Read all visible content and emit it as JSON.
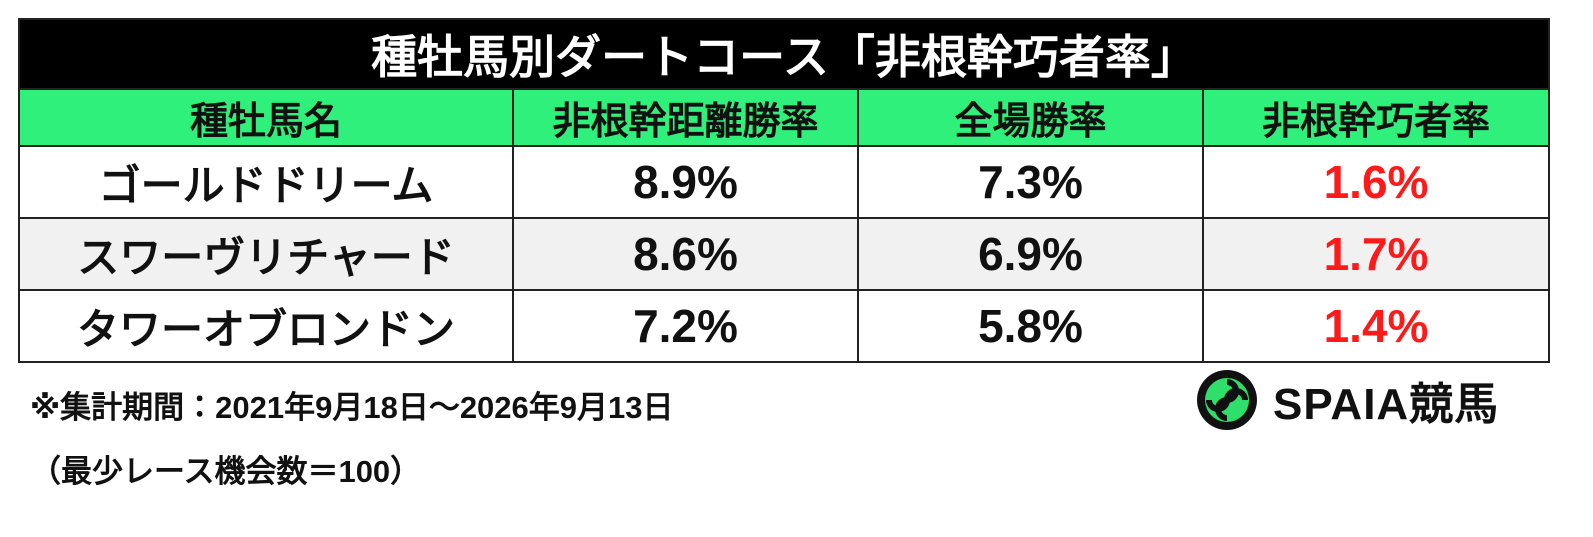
{
  "title": "種牡馬別ダートコース「非根幹巧者率」",
  "table": {
    "header": [
      "種牡馬名",
      "非根幹距離勝率",
      "全場勝率",
      "非根幹巧者率"
    ],
    "rows": [
      [
        "ゴールドドリーム",
        "8.9%",
        "7.3%",
        "1.6%"
      ],
      [
        "スワーヴリチャード",
        "8.6%",
        "6.9%",
        "1.7%"
      ],
      [
        "タワーオブロンドン",
        "7.2%",
        "5.8%",
        "1.4%"
      ]
    ]
  },
  "notes": [
    "※集計期間：2021年9月18日～2026年9月13日",
    "（最少レース機会数＝100）"
  ],
  "logo": {
    "text": "SPAIA競馬"
  }
}
